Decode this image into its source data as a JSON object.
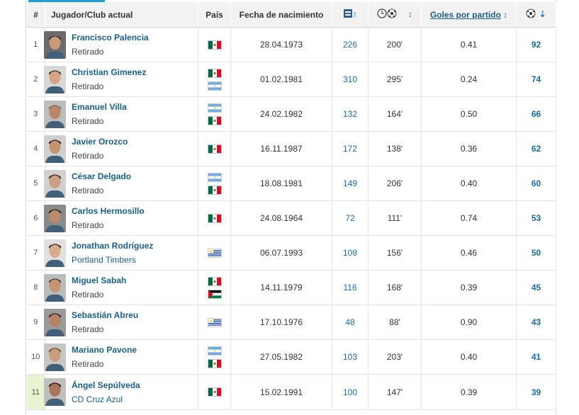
{
  "header": {
    "rank": "#",
    "player": "Jugador/Club actual",
    "country": "País",
    "birth": "Fecha de nacimiento",
    "apps_icon": "appearances-icon",
    "minutes_icon": "minutes-ball-icon",
    "goals_per_game": "Goles por partido",
    "goals_icon": "goals-ball-icon"
  },
  "colors": {
    "link": "#1a5f8a",
    "accent": "#1d9fd8",
    "header_bg": "#f2f2f2",
    "highlight": "#e8f3d2"
  },
  "rows": [
    {
      "rank": "1",
      "name": "Francisco Palencia",
      "club": "Retirado",
      "club_link": false,
      "flags": [
        "mexico"
      ],
      "birth": "28.04.1973",
      "apps": "226",
      "minutes": "200'",
      "gpg": "0.41",
      "goals": "92"
    },
    {
      "rank": "2",
      "name": "Christian Gimenez",
      "club": "Retirado",
      "club_link": false,
      "flags": [
        "mexico",
        "argentina"
      ],
      "birth": "01.02.1981",
      "apps": "310",
      "minutes": "295'",
      "gpg": "0.24",
      "goals": "74"
    },
    {
      "rank": "3",
      "name": "Emanuel Villa",
      "club": "Retirado",
      "club_link": false,
      "flags": [
        "argentina",
        "mexico"
      ],
      "birth": "24.02.1982",
      "apps": "132",
      "minutes": "164'",
      "gpg": "0.50",
      "goals": "66"
    },
    {
      "rank": "4",
      "name": "Javier Orozco",
      "club": "Retirado",
      "club_link": false,
      "flags": [
        "mexico"
      ],
      "birth": "16.11.1987",
      "apps": "172",
      "minutes": "138'",
      "gpg": "0.36",
      "goals": "62"
    },
    {
      "rank": "5",
      "name": "César Delgado",
      "club": "Retirado",
      "club_link": false,
      "flags": [
        "argentina",
        "mexico"
      ],
      "birth": "18.08.1981",
      "apps": "149",
      "minutes": "206'",
      "gpg": "0.40",
      "goals": "60"
    },
    {
      "rank": "6",
      "name": "Carlos Hermosillo",
      "club": "Retirado",
      "club_link": false,
      "flags": [
        "mexico"
      ],
      "birth": "24.08.1964",
      "apps": "72",
      "minutes": "111'",
      "gpg": "0.74",
      "goals": "53"
    },
    {
      "rank": "7",
      "name": "Jonathan Rodríguez",
      "club": "Portland Timbers",
      "club_link": true,
      "flags": [
        "uruguay"
      ],
      "birth": "06.07.1993",
      "apps": "108",
      "minutes": "156'",
      "gpg": "0.46",
      "goals": "50"
    },
    {
      "rank": "8",
      "name": "Miguel Sabah",
      "club": "Retirado",
      "club_link": false,
      "flags": [
        "mexico",
        "palestine"
      ],
      "birth": "14.11.1979",
      "apps": "116",
      "minutes": "168'",
      "gpg": "0.39",
      "goals": "45"
    },
    {
      "rank": "9",
      "name": "Sebastián Abreu",
      "club": "Retirado",
      "club_link": false,
      "flags": [
        "uruguay"
      ],
      "birth": "17.10.1976",
      "apps": "48",
      "minutes": "88'",
      "gpg": "0.90",
      "goals": "43"
    },
    {
      "rank": "10",
      "name": "Mariano Pavone",
      "club": "Retirado",
      "club_link": false,
      "flags": [
        "argentina",
        "mexico"
      ],
      "birth": "27.05.1982",
      "apps": "103",
      "minutes": "203'",
      "gpg": "0.40",
      "goals": "41"
    },
    {
      "rank": "11",
      "name": "Ángel Sepúlveda",
      "club": "CD Cruz Azul",
      "club_link": true,
      "flags": [
        "mexico"
      ],
      "birth": "15.02.1991",
      "apps": "100",
      "minutes": "147'",
      "gpg": "0.39",
      "goals": "39"
    }
  ]
}
